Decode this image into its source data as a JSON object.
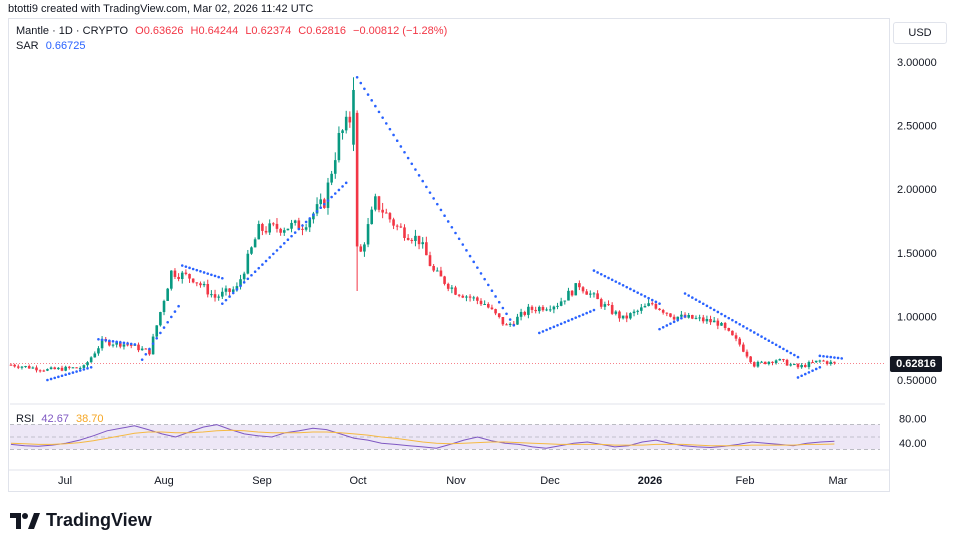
{
  "header": {
    "attribution": "btotti9 created with TradingView.com, Mar 02, 2026 11:42 UTC"
  },
  "legend": {
    "symbol": "Mantle · 1D · CRYPTO",
    "open": "O0.63626",
    "high": "H0.64244",
    "low": "L0.62374",
    "close": "C0.62816",
    "change": "−0.00812 (−1.28%)",
    "sar_label": "SAR",
    "sar_value": "0.66725"
  },
  "currency_button": "USD",
  "last_price_tag": "0.62816",
  "rsi_legend": {
    "label": "RSI",
    "rsi_value": "42.67",
    "ma_value": "38.70"
  },
  "brand": {
    "name": "TradingView"
  },
  "colors": {
    "up": "#089981",
    "down": "#f23645",
    "sar": "#2962ff",
    "rsi": "#7e57c2",
    "rsi_ma": "#f5b942",
    "rsi_band": "#ede7f6"
  },
  "chart_data": [
    {
      "type": "candlestick",
      "title": "Mantle · 1D · CRYPTO",
      "price_axis": {
        "ticks": [
          "3.00000",
          "2.50000",
          "2.00000",
          "1.50000",
          "1.00000",
          "0.50000"
        ],
        "ylim": [
          0.5,
          3.0
        ]
      },
      "time_axis": {
        "labels": [
          "Jul",
          "Aug",
          "Sep",
          "Oct",
          "Nov",
          "Dec",
          "2026",
          "Feb",
          "Mar"
        ]
      },
      "close_path": [
        {
          "day": 0,
          "close": 0.62
        },
        {
          "day": 10,
          "close": 0.58
        },
        {
          "day": 20,
          "close": 0.6
        },
        {
          "day": 25,
          "close": 0.8
        },
        {
          "day": 32,
          "close": 0.78
        },
        {
          "day": 38,
          "close": 0.72
        },
        {
          "day": 44,
          "close": 1.35
        },
        {
          "day": 50,
          "close": 1.3
        },
        {
          "day": 56,
          "close": 1.15
        },
        {
          "day": 62,
          "close": 1.22
        },
        {
          "day": 68,
          "close": 1.68
        },
        {
          "day": 74,
          "close": 1.7
        },
        {
          "day": 80,
          "close": 1.72
        },
        {
          "day": 86,
          "close": 1.9
        },
        {
          "day": 90,
          "close": 2.4
        },
        {
          "day": 94,
          "close": 2.6
        },
        {
          "day": 96,
          "close": 1.5
        },
        {
          "day": 100,
          "close": 1.9
        },
        {
          "day": 106,
          "close": 1.7
        },
        {
          "day": 112,
          "close": 1.6
        },
        {
          "day": 116,
          "close": 1.35
        },
        {
          "day": 122,
          "close": 1.2
        },
        {
          "day": 130,
          "close": 1.1
        },
        {
          "day": 136,
          "close": 0.92
        },
        {
          "day": 142,
          "close": 1.05
        },
        {
          "day": 150,
          "close": 1.1
        },
        {
          "day": 156,
          "close": 1.25
        },
        {
          "day": 162,
          "close": 1.1
        },
        {
          "day": 168,
          "close": 0.98
        },
        {
          "day": 176,
          "close": 1.1
        },
        {
          "day": 182,
          "close": 1.0
        },
        {
          "day": 188,
          "close": 0.98
        },
        {
          "day": 194,
          "close": 0.95
        },
        {
          "day": 200,
          "close": 0.78
        },
        {
          "day": 204,
          "close": 0.62
        },
        {
          "day": 210,
          "close": 0.66
        },
        {
          "day": 216,
          "close": 0.6
        },
        {
          "day": 222,
          "close": 0.65
        },
        {
          "day": 226,
          "close": 0.63
        }
      ],
      "spikes": [
        {
          "day": 94,
          "high": 2.88,
          "low": 2.3
        },
        {
          "day": 95,
          "high": 2.62,
          "low": 1.2
        }
      ],
      "sar_segments": [
        {
          "side": "below",
          "from": 10,
          "to": 22,
          "start": 0.5,
          "end": 0.6
        },
        {
          "side": "above",
          "from": 24,
          "to": 34,
          "start": 0.82,
          "end": 0.78
        },
        {
          "side": "below",
          "from": 36,
          "to": 46,
          "start": 0.66,
          "end": 1.08
        },
        {
          "side": "above",
          "from": 47,
          "to": 58,
          "start": 1.4,
          "end": 1.3
        },
        {
          "side": "below",
          "from": 58,
          "to": 92,
          "start": 1.1,
          "end": 2.05
        },
        {
          "side": "above",
          "from": 95,
          "to": 138,
          "start": 2.88,
          "end": 0.93
        },
        {
          "side": "below",
          "from": 145,
          "to": 160,
          "start": 0.87,
          "end": 1.05
        },
        {
          "side": "above",
          "from": 160,
          "to": 178,
          "start": 1.36,
          "end": 1.1
        },
        {
          "side": "below",
          "from": 178,
          "to": 185,
          "start": 0.9,
          "end": 1.0
        },
        {
          "side": "above",
          "from": 185,
          "to": 216,
          "start": 1.18,
          "end": 0.68
        },
        {
          "side": "below",
          "from": 216,
          "to": 222,
          "start": 0.52,
          "end": 0.6
        },
        {
          "side": "above",
          "from": 222,
          "to": 228,
          "start": 0.69,
          "end": 0.67
        }
      ]
    },
    {
      "type": "line",
      "title": "RSI",
      "yaxis": {
        "ticks": [
          "80.00",
          "40.00"
        ]
      },
      "series": [
        {
          "name": "RSI",
          "values": [
            38,
            36,
            35,
            37,
            40,
            45,
            52,
            60,
            64,
            68,
            62,
            55,
            50,
            58,
            66,
            70,
            62,
            55,
            52,
            50,
            57,
            60,
            64,
            62,
            55,
            48,
            45,
            40,
            38,
            36,
            34,
            32,
            38,
            45,
            50,
            44,
            40,
            38,
            34,
            32,
            36,
            40,
            42,
            38,
            34,
            36,
            42,
            45,
            40,
            36,
            34,
            33,
            35,
            38,
            42,
            40,
            38,
            36,
            40,
            42,
            43
          ]
        },
        {
          "name": "MA",
          "values": [
            40,
            39,
            38,
            38,
            39,
            41,
            44,
            48,
            52,
            56,
            58,
            58,
            57,
            57,
            58,
            60,
            61,
            60,
            58,
            57,
            57,
            57,
            58,
            58,
            57,
            55,
            53,
            50,
            48,
            45,
            42,
            40,
            39,
            40,
            41,
            42,
            42,
            41,
            40,
            39,
            38,
            38,
            38,
            38,
            37,
            37,
            37,
            38,
            38,
            38,
            37,
            36,
            36,
            36,
            37,
            37,
            37,
            37,
            38,
            38,
            38.7
          ]
        }
      ]
    }
  ]
}
